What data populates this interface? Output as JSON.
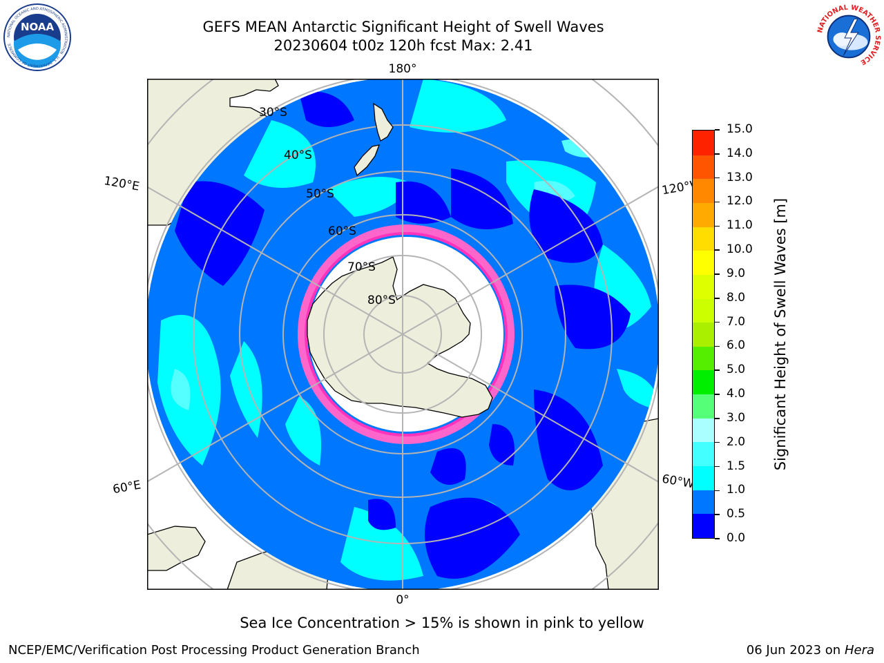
{
  "header": {
    "title_line1": "GEFS MEAN Antarctic Significant Height of Swell Waves",
    "title_line2": "20230604 t00z 120h fcst   Max: 2.41"
  },
  "logos": {
    "noaa": {
      "text": "NOAA",
      "ring_text": "NATIONAL OCEANIC AND ATMOSPHERIC ADMINISTRATION · U.S. DEPARTMENT OF COMMERCE"
    },
    "nws": {
      "ring_text": "NATIONAL WEATHER SERVICE"
    }
  },
  "map": {
    "longitude_labels": {
      "top": "180°",
      "bottom": "0°",
      "upper_left": "120°E",
      "lower_left": "60°E",
      "upper_right": "120°W",
      "lower_right": "60°W"
    },
    "latitude_labels": [
      "30°S",
      "40°S",
      "50°S",
      "60°S",
      "70°S",
      "80°S"
    ]
  },
  "colorbar": {
    "title": "Significant Height of Swell Waves [m]",
    "ticks": [
      "0.0",
      "0.5",
      "1.0",
      "1.5",
      "2.0",
      "3.0",
      "4.0",
      "5.0",
      "6.0",
      "7.0",
      "8.0",
      "9.0",
      "10.0",
      "11.0",
      "12.0",
      "13.0",
      "14.0",
      "15.0"
    ],
    "colors": [
      "#0000ff",
      "#0077ff",
      "#00ffff",
      "#44ffff",
      "#aaffff",
      "#55ff77",
      "#00ee00",
      "#55ee00",
      "#aaee00",
      "#ccff00",
      "#ddff00",
      "#ffff00",
      "#ffdd00",
      "#ffaa00",
      "#ff8800",
      "#ff5500",
      "#ff2200"
    ]
  },
  "footer": {
    "note": "Sea Ice Concentration > 15% is shown in pink to yellow",
    "left": "NCEP/EMC/Verification Post Processing Product Generation Branch",
    "right_date": "06 Jun 2023 on",
    "right_host": "Hera"
  }
}
